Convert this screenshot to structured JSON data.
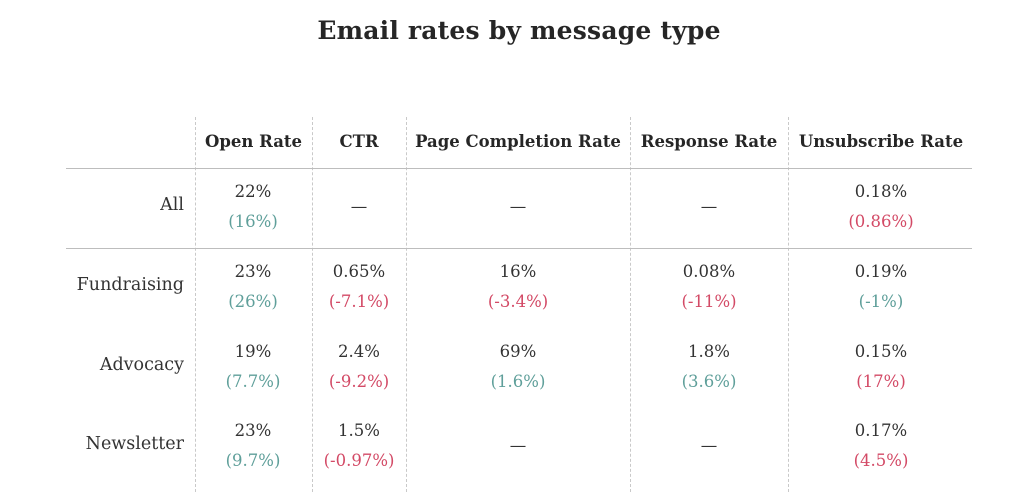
{
  "chart_data": {
    "type": "table",
    "title": "Email rates by message type",
    "columns": [
      "Open Rate",
      "CTR",
      "Page Completion Rate",
      "Response Rate",
      "Unsubscribe Rate"
    ],
    "rows": [
      {
        "label": "All",
        "cells": [
          {
            "value": "22%",
            "change": "(16%)",
            "sign": "pos"
          },
          {
            "value": "—",
            "change": "",
            "sign": ""
          },
          {
            "value": "—",
            "change": "",
            "sign": ""
          },
          {
            "value": "—",
            "change": "",
            "sign": ""
          },
          {
            "value": "0.18%",
            "change": "(0.86%)",
            "sign": "neg"
          }
        ]
      },
      {
        "label": "Fundraising",
        "cells": [
          {
            "value": "23%",
            "change": "(26%)",
            "sign": "pos"
          },
          {
            "value": "0.65%",
            "change": "(-7.1%)",
            "sign": "neg"
          },
          {
            "value": "16%",
            "change": "(-3.4%)",
            "sign": "neg"
          },
          {
            "value": "0.08%",
            "change": "(-11%)",
            "sign": "neg"
          },
          {
            "value": "0.19%",
            "change": "(-1%)",
            "sign": "pos"
          }
        ]
      },
      {
        "label": "Advocacy",
        "cells": [
          {
            "value": "19%",
            "change": "(7.7%)",
            "sign": "pos"
          },
          {
            "value": "2.4%",
            "change": "(-9.2%)",
            "sign": "neg"
          },
          {
            "value": "69%",
            "change": "(1.6%)",
            "sign": "pos"
          },
          {
            "value": "1.8%",
            "change": "(3.6%)",
            "sign": "pos"
          },
          {
            "value": "0.15%",
            "change": "(17%)",
            "sign": "neg"
          }
        ]
      },
      {
        "label": "Newsletter",
        "cells": [
          {
            "value": "23%",
            "change": "(9.7%)",
            "sign": "pos"
          },
          {
            "value": "1.5%",
            "change": "(-0.97%)",
            "sign": "neg"
          },
          {
            "value": "—",
            "change": "",
            "sign": ""
          },
          {
            "value": "—",
            "change": "",
            "sign": ""
          },
          {
            "value": "0.17%",
            "change": "(4.5%)",
            "sign": "neg"
          }
        ]
      }
    ],
    "colors": {
      "positive": "#5f9f9a",
      "negative": "#d34a66"
    }
  }
}
